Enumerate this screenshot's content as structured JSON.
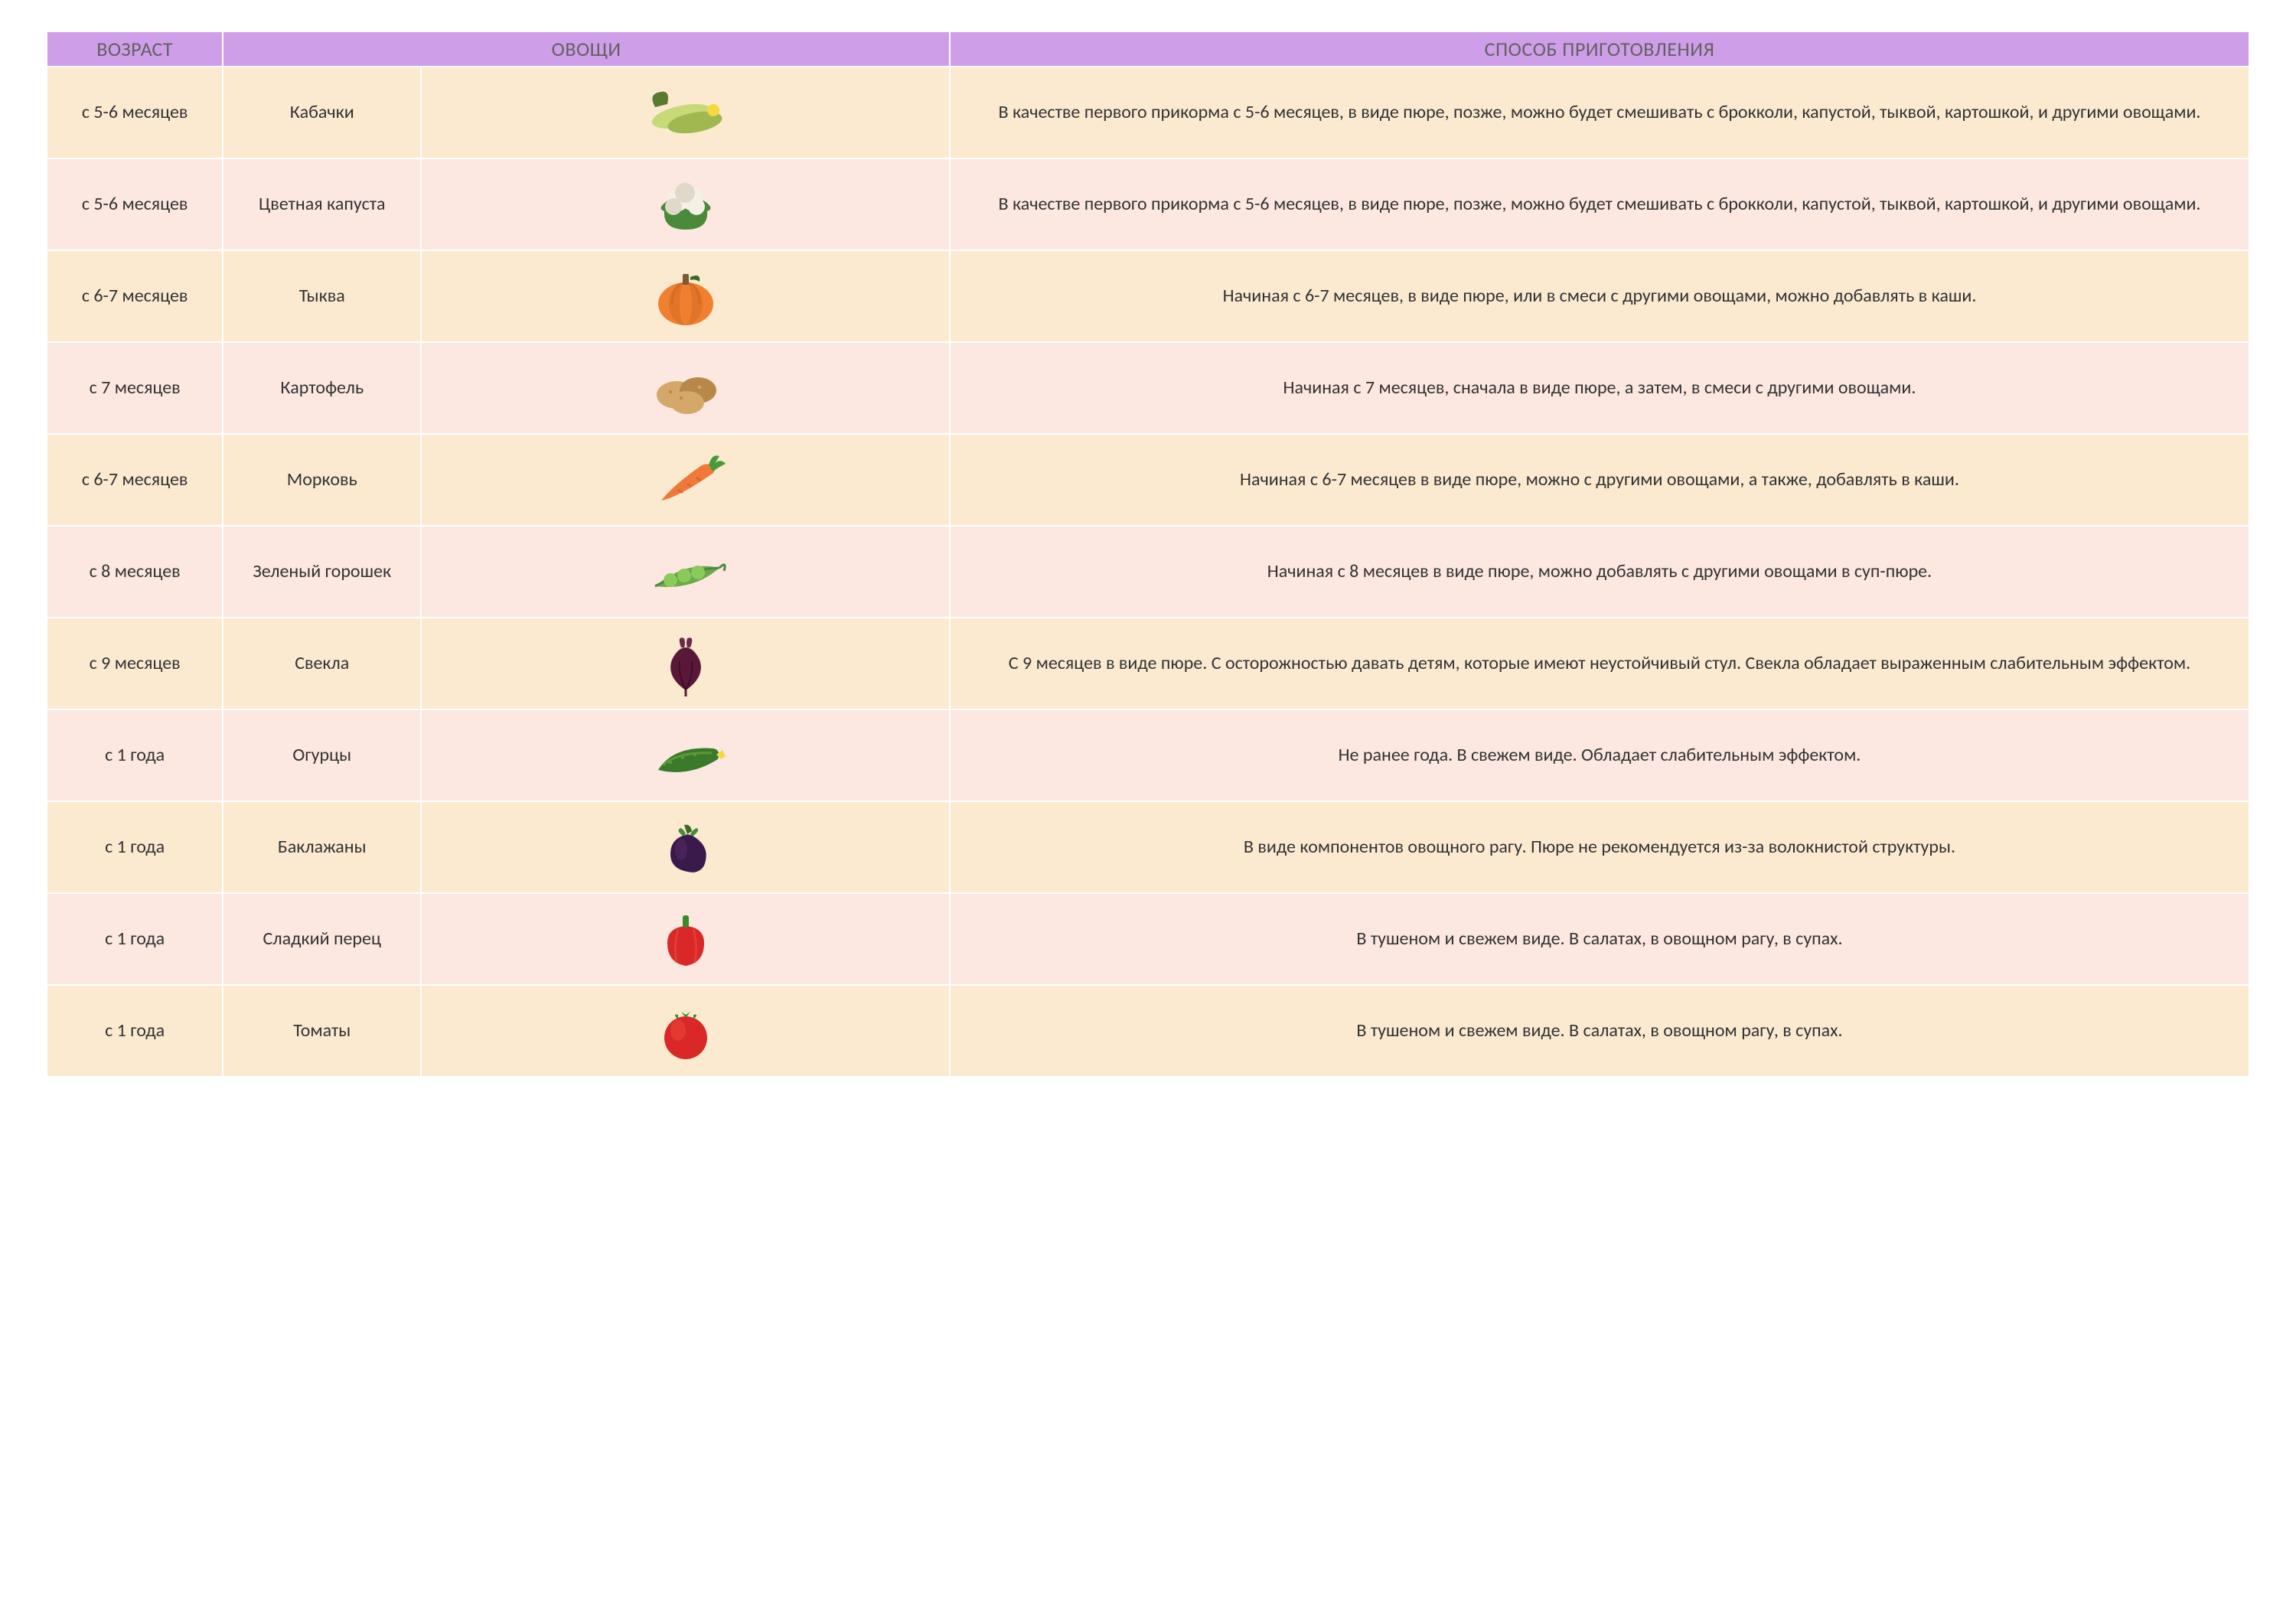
{
  "styling": {
    "header_background": "#ce9ee8",
    "header_text_color": "#616161",
    "row_colors": [
      "#fbead0",
      "#fce7e1"
    ],
    "font_family": "Calibri, 'Segoe UI', Arial, sans-serif",
    "header_fontsize_pt": 20,
    "body_fontsize_pt": 18,
    "border_color": "#ffffff",
    "column_widths_pct": [
      8,
      9,
      24,
      59
    ]
  },
  "columns": [
    "ВОЗРАСТ",
    "ОВОЩИ",
    "СПОСОБ ПРИГОТОВЛЕНИЯ"
  ],
  "rows": [
    {
      "age": "с 5-6 месяцев",
      "name": "Кабачки",
      "icon": "zucchini",
      "preparation": "В качестве первого прикорма с 5-6 месяцев, в виде пюре, позже, можно будет смешивать с брокколи, капустой, тыквой, картошкой, и другими овощами."
    },
    {
      "age": "с 5-6 месяцев",
      "name": "Цветная капуста",
      "icon": "cauliflower",
      "preparation": "В качестве первого прикорма с 5-6 месяцев, в виде пюре, позже, можно будет смешивать с брокколи, капустой, тыквой, картошкой, и другими овощами."
    },
    {
      "age": "с 6-7 месяцев",
      "name": "Тыква",
      "icon": "pumpkin",
      "preparation": "Начиная с 6-7 месяцев, в виде пюре, или в смеси с другими овощами, можно добавлять в каши."
    },
    {
      "age": "с 7 месяцев",
      "name": "Картофель",
      "icon": "potato",
      "preparation": "Начиная с 7 месяцев, сначала в виде пюре, а затем, в смеси с другими овощами."
    },
    {
      "age": "с 6-7 месяцев",
      "name": "Морковь",
      "icon": "carrot",
      "preparation": "Начиная с 6-7 месяцев в виде пюре, можно с другими овощами, а также, добавлять в каши."
    },
    {
      "age": "с 8 месяцев",
      "name": "Зеленый горошек",
      "icon": "peas",
      "preparation": "Начиная с 8 месяцев в виде пюре, можно добавлять с другими овощами в суп-пюре."
    },
    {
      "age": "с 9 месяцев",
      "name": "Свекла",
      "icon": "beet",
      "preparation": "С 9 месяцев в виде пюре. С осторожностью давать детям, которые имеют неустойчивый стул. Свекла обладает выраженным слабительным эффектом."
    },
    {
      "age": "с 1 года",
      "name": "Огурцы",
      "icon": "cucumber",
      "preparation": "Не ранее года. В свежем виде. Обладает слабительным эффектом."
    },
    {
      "age": "с 1 года",
      "name": "Баклажаны",
      "icon": "eggplant",
      "preparation": "В виде компонентов овощного рагу. Пюре не рекомендуется из-за волокнистой структуры."
    },
    {
      "age": "с 1 года",
      "name": "Сладкий перец",
      "icon": "pepper",
      "preparation": "В тушеном и свежем виде. В салатах, в овощном рагу, в супах."
    },
    {
      "age": "с 1 года",
      "name": "Томаты",
      "icon": "tomato",
      "preparation": "В тушеном и свежем виде. В салатах, в овощном рагу, в супах."
    }
  ],
  "icons": {
    "zucchini": {
      "primary": "#c8d978",
      "secondary": "#a0b850",
      "leaf": "#5a7a2e",
      "flower": "#f5d940"
    },
    "cauliflower": {
      "primary": "#f5f0e6",
      "secondary": "#e0d8c8",
      "leaf": "#4a8a3a"
    },
    "pumpkin": {
      "primary": "#f08030",
      "secondary": "#d06820",
      "leaf": "#3a6a2a",
      "stem": "#7a5a30"
    },
    "potato": {
      "primary": "#d4a868",
      "secondary": "#b88848"
    },
    "carrot": {
      "primary": "#f07838",
      "secondary": "#d86028",
      "leaf": "#4a9a3a"
    },
    "peas": {
      "primary": "#6aaa4a",
      "secondary": "#4a8a3a",
      "pea": "#8aca5a"
    },
    "beet": {
      "primary": "#5a1838",
      "secondary": "#3a1028",
      "leaf": "#6a2a48"
    },
    "cucumber": {
      "primary": "#3a7a2a",
      "secondary": "#5a9a3a",
      "flower": "#f5d940"
    },
    "eggplant": {
      "primary": "#3a1a4a",
      "secondary": "#5a2a6a",
      "leaf": "#4a8a3a",
      "stem": "#3a6a2a"
    },
    "pepper": {
      "primary": "#d82828",
      "secondary": "#f04838",
      "leaf": "#3a8a2a"
    },
    "tomato": {
      "primary": "#d82828",
      "secondary": "#f04838",
      "leaf": "#3a8a2a"
    }
  }
}
